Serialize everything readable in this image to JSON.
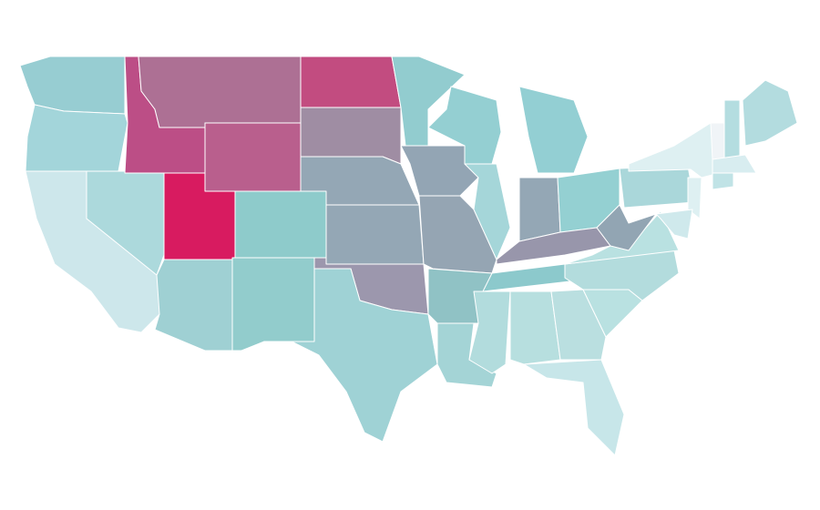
{
  "map": {
    "stroke": "#ffffff",
    "fills": [
      "#97cdd2",
      "#a3d5da",
      "#cde7eb",
      "#acd9dc",
      "#bc4e86",
      "#ad7094",
      "#b95f8d",
      "#d81b60",
      "#8ecbcb",
      "#9fd0d3",
      "#92cccc",
      "#c24c80",
      "#9f8da3",
      "#94a7b5",
      "#94a7b5",
      "#9c97ad",
      "#9fd2d5",
      "#92cccf",
      "#93a5b4",
      "#95a5b3",
      "#90c2c5",
      "#a4d4d6",
      "#94cfd2",
      "#a5d6d9",
      "#93cfd3",
      "#94a7b5",
      "#94d0d2",
      "#9896ab",
      "#8cc9cc",
      "#b2dcdd",
      "#b7dfdf",
      "#badfe0",
      "#c7e6e9",
      "#b9e1e1",
      "#b3dcdd",
      "#b9e1e1",
      "#92a5b3",
      "#aad7da",
      "#def0f2",
      "#f0f4f7",
      "#b4dde0",
      "#b3dcdf",
      "#d8edf0",
      "#c0e3e6",
      "#def0f2",
      "#cfe9ec"
    ]
  }
}
